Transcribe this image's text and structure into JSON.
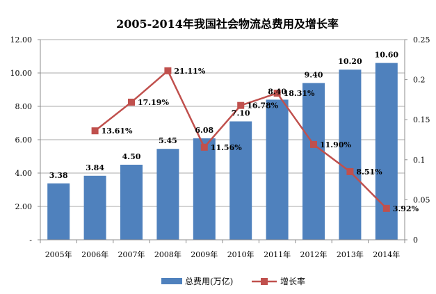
{
  "chart_data": {
    "type": "bar+line",
    "title": "2005-2014年我国社会物流总费用及增长率",
    "categories": [
      "2005年",
      "2006年",
      "2007年",
      "2008年",
      "2009年",
      "2010年",
      "2011年",
      "2012年",
      "2013年",
      "2014年"
    ],
    "series": [
      {
        "name": "总费用(万亿)",
        "type": "bar",
        "axis": "left",
        "color": "#4F81BD",
        "values": [
          3.38,
          3.84,
          4.5,
          5.45,
          6.08,
          7.1,
          8.4,
          9.4,
          10.2,
          10.6
        ],
        "labels": [
          "3.38",
          "3.84",
          "4.50",
          "5.45",
          "6.08",
          "7.10",
          "8.40",
          "9.40",
          "10.20",
          "10.60"
        ]
      },
      {
        "name": "增长率",
        "type": "line",
        "axis": "right",
        "color": "#C0504D",
        "values": [
          null,
          0.1361,
          0.1719,
          0.2111,
          0.1156,
          0.1678,
          0.1831,
          0.119,
          0.0851,
          0.0392
        ],
        "labels": [
          null,
          "13.61%",
          "17.19%",
          "21.11%",
          "11.56%",
          "16.78%",
          "18.31%",
          "11.90%",
          "8.51%",
          "3.92%"
        ]
      }
    ],
    "y_left": {
      "min": 0,
      "max": 12,
      "step": 2,
      "tick_labels": [
        "-",
        "2.00",
        "4.00",
        "6.00",
        "8.00",
        "10.00",
        "12.00"
      ]
    },
    "y_right": {
      "min": 0,
      "max": 0.25,
      "step": 0.05,
      "tick_labels": [
        "0",
        "0.05",
        "0.1",
        "0.15",
        "0.2",
        "0.25"
      ]
    },
    "grid": true,
    "legend_position": "bottom"
  }
}
